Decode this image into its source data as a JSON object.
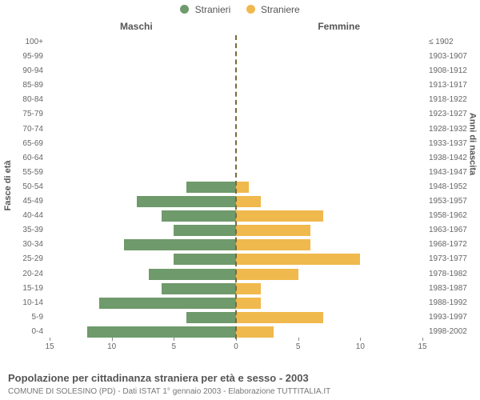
{
  "legend": {
    "male": {
      "label": "Stranieri",
      "color": "#6f9a6b"
    },
    "female": {
      "label": "Straniere",
      "color": "#f0b94d"
    }
  },
  "col_headers": {
    "left": "Maschi",
    "right": "Femmine"
  },
  "y_title_left": "Fasce di età",
  "y_title_right": "Anni di nascita",
  "title": "Popolazione per cittadinanza straniera per età e sesso - 2003",
  "subtitle": "COMUNE DI SOLESINO (PD) - Dati ISTAT 1° gennaio 2003 - Elaborazione TUTTITALIA.IT",
  "divider_color": "#7b6a3a",
  "bg_color": "#ffffff",
  "text_color": "#555555",
  "x_axis": {
    "max": 15,
    "step": 5,
    "ticks": [
      15,
      10,
      5,
      0,
      5,
      10,
      15
    ]
  },
  "rows": [
    {
      "age": "100+",
      "year": "≤ 1902",
      "m": 0,
      "f": 0
    },
    {
      "age": "95-99",
      "year": "1903-1907",
      "m": 0,
      "f": 0
    },
    {
      "age": "90-94",
      "year": "1908-1912",
      "m": 0,
      "f": 0
    },
    {
      "age": "85-89",
      "year": "1913-1917",
      "m": 0,
      "f": 0
    },
    {
      "age": "80-84",
      "year": "1918-1922",
      "m": 0,
      "f": 0
    },
    {
      "age": "75-79",
      "year": "1923-1927",
      "m": 0,
      "f": 0
    },
    {
      "age": "70-74",
      "year": "1928-1932",
      "m": 0,
      "f": 0
    },
    {
      "age": "65-69",
      "year": "1933-1937",
      "m": 0,
      "f": 0
    },
    {
      "age": "60-64",
      "year": "1938-1942",
      "m": 0,
      "f": 0
    },
    {
      "age": "55-59",
      "year": "1943-1947",
      "m": 0,
      "f": 0
    },
    {
      "age": "50-54",
      "year": "1948-1952",
      "m": 4,
      "f": 1
    },
    {
      "age": "45-49",
      "year": "1953-1957",
      "m": 8,
      "f": 2
    },
    {
      "age": "40-44",
      "year": "1958-1962",
      "m": 6,
      "f": 7
    },
    {
      "age": "35-39",
      "year": "1963-1967",
      "m": 5,
      "f": 6
    },
    {
      "age": "30-34",
      "year": "1968-1972",
      "m": 9,
      "f": 6
    },
    {
      "age": "25-29",
      "year": "1973-1977",
      "m": 5,
      "f": 10
    },
    {
      "age": "20-24",
      "year": "1978-1982",
      "m": 7,
      "f": 5
    },
    {
      "age": "15-19",
      "year": "1983-1987",
      "m": 6,
      "f": 2
    },
    {
      "age": "10-14",
      "year": "1988-1992",
      "m": 11,
      "f": 2
    },
    {
      "age": "5-9",
      "year": "1993-1997",
      "m": 4,
      "f": 7
    },
    {
      "age": "0-4",
      "year": "1998-2002",
      "m": 12,
      "f": 3
    }
  ]
}
